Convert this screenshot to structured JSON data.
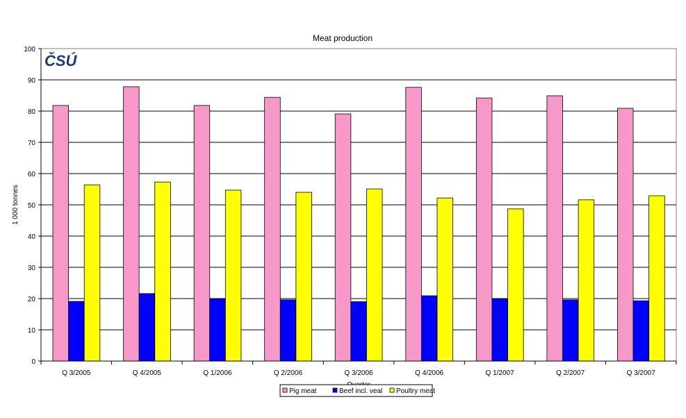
{
  "chart_data": {
    "type": "bar",
    "title": "Meat production",
    "xlabel": "Quarter",
    "ylabel": "1 000 tonnes",
    "ylim": [
      0,
      100
    ],
    "yticks": [
      0,
      10,
      20,
      30,
      40,
      50,
      60,
      70,
      80,
      90,
      100
    ],
    "grid": true,
    "legend_placement": "bottom",
    "logo": "ČSÚ",
    "categories": [
      "Q 3/2005",
      "Q 4/2005",
      "Q 1/2006",
      "Q 2/2006",
      "Q 3/2006",
      "Q 4/2006",
      "Q 1/2007",
      "Q 2/2007",
      "Q 3/2007"
    ],
    "series": [
      {
        "name": "Pig meat",
        "color": "#f799c8",
        "values": [
          81.8,
          87.8,
          81.8,
          84.4,
          79.1,
          87.6,
          84.2,
          84.9,
          80.9
        ]
      },
      {
        "name": "Beef incl. veal",
        "color": "#0000ff",
        "values": [
          19.1,
          21.6,
          19.9,
          19.6,
          19.0,
          20.9,
          19.9,
          19.6,
          19.3
        ]
      },
      {
        "name": "Poultry meat",
        "color": "#ffff00",
        "values": [
          56.4,
          57.3,
          54.7,
          54.0,
          55.1,
          52.2,
          48.7,
          51.6,
          52.9
        ]
      }
    ]
  }
}
